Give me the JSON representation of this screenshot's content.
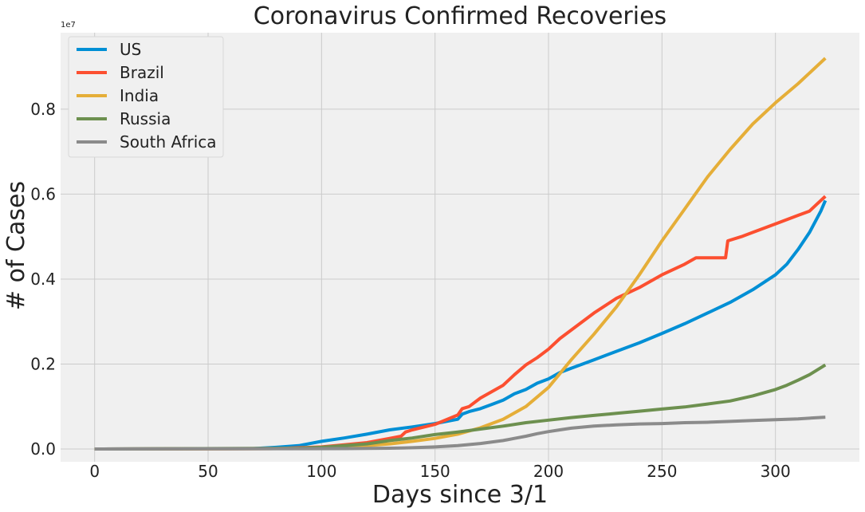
{
  "chart_data": {
    "type": "line",
    "title": "Coronavirus Confirmed Recoveries",
    "xlabel": "Days since 3/1",
    "ylabel": "# of Cases",
    "y_offset_label": "1e7",
    "xlim": [
      -15,
      337
    ],
    "ylim": [
      -0.03,
      0.98
    ],
    "x_ticks": [
      0,
      50,
      100,
      150,
      200,
      250,
      300
    ],
    "x_tick_labels": [
      "0",
      "50",
      "100",
      "150",
      "200",
      "250",
      "300"
    ],
    "y_ticks": [
      0.0,
      0.2,
      0.4,
      0.6,
      0.8
    ],
    "y_tick_labels": [
      "0.0",
      "0.2",
      "0.4",
      "0.6",
      "0.8"
    ],
    "grid": true,
    "legend_position": "top-left",
    "series": [
      {
        "name": "US",
        "color": "#008fd5",
        "points": [
          [
            0,
            0
          ],
          [
            70,
            0.001
          ],
          [
            80,
            0.004
          ],
          [
            90,
            0.008
          ],
          [
            100,
            0.018
          ],
          [
            110,
            0.026
          ],
          [
            120,
            0.035
          ],
          [
            130,
            0.045
          ],
          [
            140,
            0.052
          ],
          [
            150,
            0.06
          ],
          [
            155,
            0.065
          ],
          [
            160,
            0.07
          ],
          [
            162,
            0.082
          ],
          [
            165,
            0.088
          ],
          [
            170,
            0.095
          ],
          [
            175,
            0.105
          ],
          [
            180,
            0.115
          ],
          [
            185,
            0.13
          ],
          [
            190,
            0.14
          ],
          [
            195,
            0.155
          ],
          [
            200,
            0.165
          ],
          [
            205,
            0.18
          ],
          [
            210,
            0.19
          ],
          [
            220,
            0.21
          ],
          [
            230,
            0.23
          ],
          [
            240,
            0.25
          ],
          [
            250,
            0.272
          ],
          [
            260,
            0.295
          ],
          [
            270,
            0.32
          ],
          [
            280,
            0.345
          ],
          [
            290,
            0.375
          ],
          [
            300,
            0.41
          ],
          [
            305,
            0.435
          ],
          [
            310,
            0.47
          ],
          [
            315,
            0.51
          ],
          [
            320,
            0.56
          ],
          [
            322,
            0.585
          ]
        ]
      },
      {
        "name": "Brazil",
        "color": "#fc4f30",
        "points": [
          [
            0,
            0
          ],
          [
            80,
            0.001
          ],
          [
            100,
            0.005
          ],
          [
            110,
            0.01
          ],
          [
            120,
            0.015
          ],
          [
            130,
            0.025
          ],
          [
            135,
            0.03
          ],
          [
            137,
            0.04
          ],
          [
            140,
            0.045
          ],
          [
            150,
            0.058
          ],
          [
            160,
            0.08
          ],
          [
            162,
            0.095
          ],
          [
            165,
            0.1
          ],
          [
            170,
            0.12
          ],
          [
            180,
            0.15
          ],
          [
            185,
            0.175
          ],
          [
            190,
            0.198
          ],
          [
            195,
            0.215
          ],
          [
            200,
            0.235
          ],
          [
            205,
            0.26
          ],
          [
            210,
            0.28
          ],
          [
            220,
            0.32
          ],
          [
            230,
            0.355
          ],
          [
            240,
            0.38
          ],
          [
            250,
            0.41
          ],
          [
            260,
            0.435
          ],
          [
            265,
            0.45
          ],
          [
            278,
            0.45
          ],
          [
            279,
            0.49
          ],
          [
            285,
            0.5
          ],
          [
            290,
            0.51
          ],
          [
            300,
            0.53
          ],
          [
            310,
            0.55
          ],
          [
            315,
            0.56
          ],
          [
            318,
            0.575
          ],
          [
            322,
            0.595
          ]
        ]
      },
      {
        "name": "India",
        "color": "#e5ae38",
        "points": [
          [
            0,
            0
          ],
          [
            80,
            0.001
          ],
          [
            100,
            0.003
          ],
          [
            110,
            0.005
          ],
          [
            120,
            0.008
          ],
          [
            130,
            0.012
          ],
          [
            140,
            0.018
          ],
          [
            150,
            0.025
          ],
          [
            160,
            0.035
          ],
          [
            170,
            0.05
          ],
          [
            180,
            0.07
          ],
          [
            190,
            0.1
          ],
          [
            200,
            0.145
          ],
          [
            210,
            0.21
          ],
          [
            220,
            0.27
          ],
          [
            230,
            0.335
          ],
          [
            240,
            0.41
          ],
          [
            250,
            0.49
          ],
          [
            260,
            0.565
          ],
          [
            270,
            0.64
          ],
          [
            280,
            0.705
          ],
          [
            290,
            0.765
          ],
          [
            300,
            0.815
          ],
          [
            310,
            0.86
          ],
          [
            322,
            0.92
          ]
        ]
      },
      {
        "name": "Russia",
        "color": "#6d904f",
        "points": [
          [
            0,
            0
          ],
          [
            90,
            0.002
          ],
          [
            100,
            0.004
          ],
          [
            110,
            0.008
          ],
          [
            120,
            0.012
          ],
          [
            130,
            0.02
          ],
          [
            140,
            0.026
          ],
          [
            150,
            0.034
          ],
          [
            160,
            0.04
          ],
          [
            170,
            0.047
          ],
          [
            180,
            0.054
          ],
          [
            190,
            0.062
          ],
          [
            200,
            0.068
          ],
          [
            210,
            0.074
          ],
          [
            220,
            0.079
          ],
          [
            230,
            0.084
          ],
          [
            240,
            0.089
          ],
          [
            250,
            0.094
          ],
          [
            260,
            0.099
          ],
          [
            270,
            0.106
          ],
          [
            280,
            0.113
          ],
          [
            290,
            0.125
          ],
          [
            300,
            0.14
          ],
          [
            305,
            0.15
          ],
          [
            310,
            0.162
          ],
          [
            315,
            0.175
          ],
          [
            322,
            0.198
          ]
        ]
      },
      {
        "name": "South Africa",
        "color": "#8b8b8b",
        "points": [
          [
            0,
            0
          ],
          [
            110,
            0.001
          ],
          [
            130,
            0.002
          ],
          [
            140,
            0.003
          ],
          [
            150,
            0.005
          ],
          [
            160,
            0.008
          ],
          [
            170,
            0.013
          ],
          [
            180,
            0.02
          ],
          [
            185,
            0.025
          ],
          [
            190,
            0.03
          ],
          [
            195,
            0.036
          ],
          [
            200,
            0.041
          ],
          [
            205,
            0.045
          ],
          [
            210,
            0.049
          ],
          [
            220,
            0.054
          ],
          [
            230,
            0.057
          ],
          [
            240,
            0.059
          ],
          [
            250,
            0.06
          ],
          [
            260,
            0.062
          ],
          [
            270,
            0.063
          ],
          [
            280,
            0.065
          ],
          [
            290,
            0.067
          ],
          [
            300,
            0.069
          ],
          [
            310,
            0.071
          ],
          [
            322,
            0.075
          ]
        ]
      }
    ]
  }
}
